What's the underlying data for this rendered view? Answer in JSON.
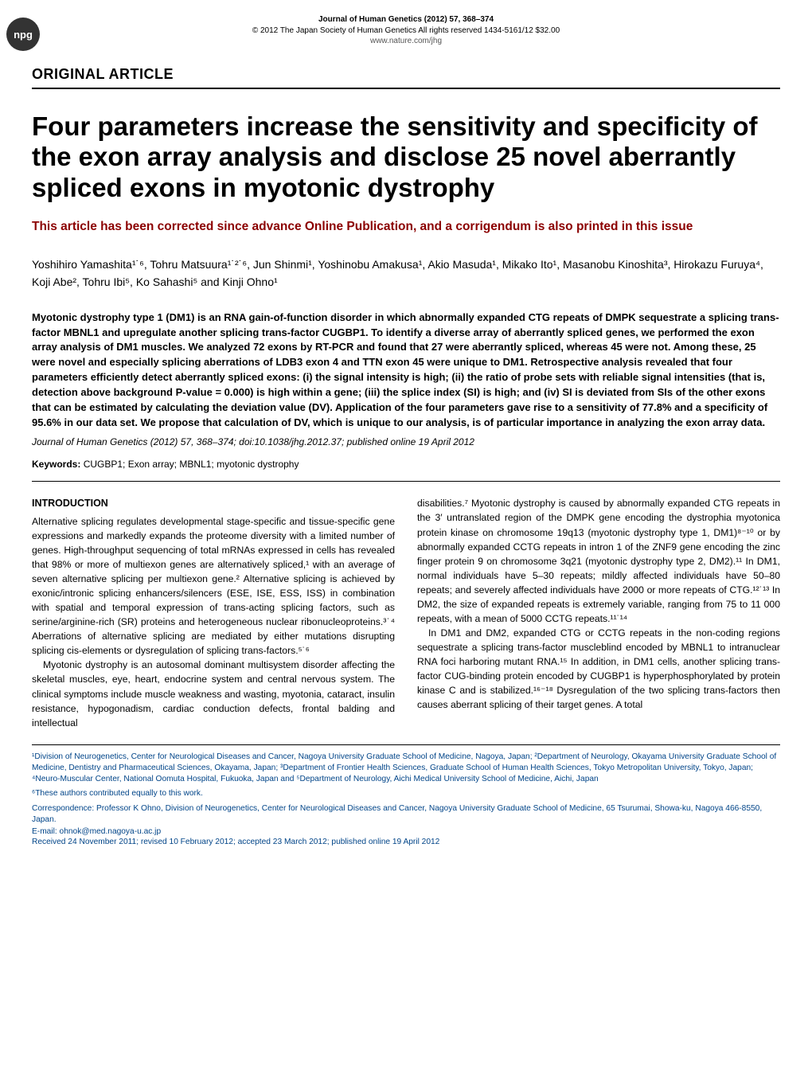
{
  "header": {
    "badge": "npg",
    "journal_line1": "Journal of Human Genetics (2012) 57, 368–374",
    "journal_line2": "© 2012 The Japan Society of Human Genetics   All rights reserved 1434-5161/12 $32.00",
    "journal_url": "www.nature.com/jhg"
  },
  "section_label": "ORIGINAL ARTICLE",
  "title": "Four parameters increase the sensitivity and specificity of the exon array analysis and disclose 25 novel aberrantly spliced exons in myotonic dystrophy",
  "correction_note": "This article has been corrected since advance Online Publication, and a corrigendum is also printed in this issue",
  "authors": "Yoshihiro Yamashita¹˙⁶, Tohru Matsuura¹˙²˙⁶, Jun Shinmi¹, Yoshinobu Amakusa¹, Akio Masuda¹, Mikako Ito¹, Masanobu Kinoshita³, Hirokazu Furuya⁴, Koji Abe², Tohru Ibi⁵, Ko Sahashi⁵ and Kinji Ohno¹",
  "abstract": {
    "text": "Myotonic dystrophy type 1 (DM1) is an RNA gain-of-function disorder in which abnormally expanded CTG repeats of DMPK sequestrate a splicing trans-factor MBNL1 and upregulate another splicing trans-factor CUGBP1. To identify a diverse array of aberrantly spliced genes, we performed the exon array analysis of DM1 muscles. We analyzed 72 exons by RT-PCR and found that 27 were aberrantly spliced, whereas 45 were not. Among these, 25 were novel and especially splicing aberrations of LDB3 exon 4 and TTN exon 45 were unique to DM1. Retrospective analysis revealed that four parameters efficiently detect aberrantly spliced exons: (i) the signal intensity is high; (ii) the ratio of probe sets with reliable signal intensities (that is, detection above background P-value = 0.000) is high within a gene; (iii) the splice index (SI) is high; and (iv) SI is deviated from SIs of the other exons that can be estimated by calculating the deviation value (DV). Application of the four parameters gave rise to a sensitivity of 77.8% and a specificity of 95.6% in our data set. We propose that calculation of DV, which is unique to our analysis, is of particular importance in analyzing the exon array data."
  },
  "citation": "Journal of Human Genetics (2012) 57, 368–374; doi:10.1038/jhg.2012.37; published online 19 April 2012",
  "keywords": {
    "label": "Keywords:",
    "text": " CUGBP1; Exon array; MBNL1; myotonic dystrophy"
  },
  "body": {
    "intro_heading": "INTRODUCTION",
    "col1_p1": "Alternative splicing regulates developmental stage-specific and tissue-specific gene expressions and markedly expands the proteome diversity with a limited number of genes. High-throughput sequencing of total mRNAs expressed in cells has revealed that 98% or more of multiexon genes are alternatively spliced,¹ with an average of seven alternative splicing per multiexon gene.² Alternative splicing is achieved by exonic/intronic splicing enhancers/silencers (ESE, ISE, ESS, ISS) in combination with spatial and temporal expression of trans-acting splicing factors, such as serine/arginine-rich (SR) proteins and heterogeneous nuclear ribonucleoproteins.³˙⁴ Aberrations of alternative splicing are mediated by either mutations disrupting splicing cis-elements or dysregulation of splicing trans-factors.⁵˙⁶",
    "col1_p2": "Myotonic dystrophy is an autosomal dominant multisystem disorder affecting the skeletal muscles, eye, heart, endocrine system and central nervous system. The clinical symptoms include muscle weakness and wasting, myotonia, cataract, insulin resistance, hypogonadism, cardiac conduction defects, frontal balding and intellectual",
    "col2_p1": "disabilities.⁷ Myotonic dystrophy is caused by abnormally expanded CTG repeats in the 3′ untranslated region of the DMPK gene encoding the dystrophia myotonica protein kinase on chromosome 19q13 (myotonic dystrophy type 1, DM1)⁸⁻¹⁰ or by abnormally expanded CCTG repeats in intron 1 of the ZNF9 gene encoding the zinc finger protein 9 on chromosome 3q21 (myotonic dystrophy type 2, DM2).¹¹ In DM1, normal individuals have 5–30 repeats; mildly affected individuals have 50–80 repeats; and severely affected individuals have 2000 or more repeats of CTG.¹²˙¹³ In DM2, the size of expanded repeats is extremely variable, ranging from 75 to 11 000 repeats, with a mean of 5000 CCTG repeats.¹¹˙¹⁴",
    "col2_p2": "In DM1 and DM2, expanded CTG or CCTG repeats in the non-coding regions sequestrate a splicing trans-factor muscleblind encoded by MBNL1 to intranuclear RNA foci harboring mutant RNA.¹⁵ In addition, in DM1 cells, another splicing trans-factor CUG-binding protein encoded by CUGBP1 is hyperphosphorylated by protein kinase C and is stabilized.¹⁶⁻¹⁸ Dysregulation of the two splicing trans-factors then causes aberrant splicing of their target genes. A total"
  },
  "footer": {
    "affiliations": "¹Division of Neurogenetics, Center for Neurological Diseases and Cancer, Nagoya University Graduate School of Medicine, Nagoya, Japan; ²Department of Neurology, Okayama University Graduate School of Medicine, Dentistry and Pharmaceutical Sciences, Okayama, Japan; ³Department of Frontier Health Sciences, Graduate School of Human Health Sciences, Tokyo Metropolitan University, Tokyo, Japan; ⁴Neuro-Muscular Center, National Oomuta Hospital, Fukuoka, Japan and ⁵Department of Neurology, Aichi Medical University School of Medicine, Aichi, Japan",
    "equal_contrib": "⁶These authors contributed equally to this work.",
    "correspondence": "Correspondence: Professor K Ohno, Division of Neurogenetics, Center for Neurological Diseases and Cancer, Nagoya University Graduate School of Medicine, 65 Tsurumai, Showa-ku, Nagoya 466-8550, Japan.",
    "email": "E-mail: ohnok@med.nagoya-u.ac.jp",
    "dates": "Received 24 November 2011; revised 10 February 2012; accepted 23 March 2012; published online 19 April 2012"
  },
  "colors": {
    "text": "#000000",
    "correction": "#8b0000",
    "footer_text": "#004488",
    "background": "#ffffff",
    "badge_bg": "#333333"
  }
}
